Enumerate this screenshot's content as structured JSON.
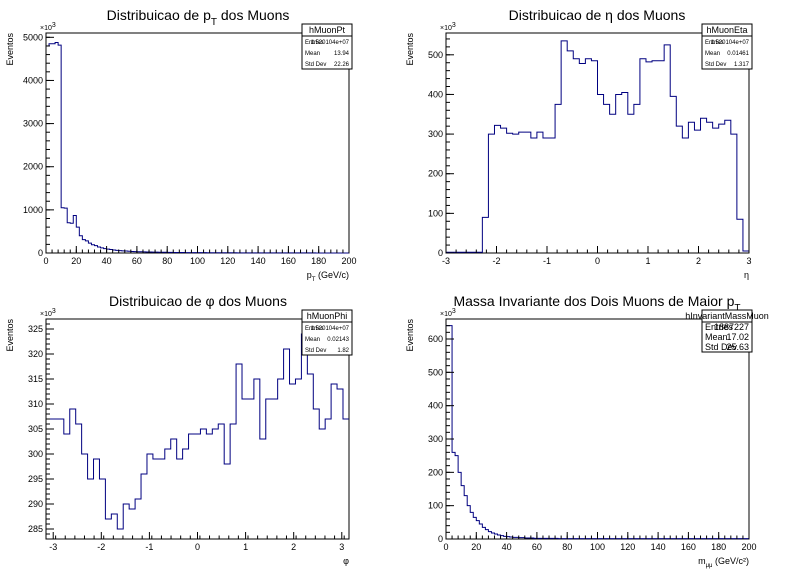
{
  "chart_data": [
    {
      "type": "histogram",
      "title": "Distribuicao de p",
      "title_sub": "T",
      "title_tail": " dos Muons",
      "xlabel": "p",
      "xlabel_sub": "T",
      "xlabel_tail": " (GeV/c)",
      "ylabel": "Eventos",
      "y_multiplier": "×10",
      "y_multiplier_exp": "3",
      "xlim": [
        0,
        200
      ],
      "ylim": [
        0,
        5100
      ],
      "xticks": [
        0,
        20,
        40,
        60,
        80,
        100,
        120,
        140,
        160,
        180,
        200
      ],
      "yticks": [
        0,
        1000,
        2000,
        3000,
        4000,
        5000
      ],
      "bin_edges_start": 0,
      "bin_width": 2,
      "values": [
        4800,
        4850,
        4850,
        4880,
        4820,
        1050,
        1040,
        700,
        690,
        870,
        600,
        400,
        310,
        280,
        230,
        190,
        170,
        140,
        120,
        100,
        90,
        80,
        70,
        60,
        55,
        50,
        45,
        40,
        36,
        33,
        30,
        28,
        26,
        24,
        22,
        20,
        19,
        18,
        17,
        16,
        15,
        14,
        13,
        12,
        12,
        11,
        10,
        10,
        9,
        9,
        8,
        8,
        8,
        7,
        7,
        7,
        6,
        6,
        6,
        5,
        5,
        5,
        5,
        4,
        4,
        4,
        4,
        4,
        3,
        3,
        3,
        3,
        3,
        3,
        3,
        2,
        2,
        2,
        2,
        2,
        2,
        2,
        2,
        2,
        2,
        2,
        2,
        2,
        2,
        1,
        1,
        1,
        1,
        1,
        1,
        1,
        1,
        1,
        1,
        1
      ],
      "stats": {
        "name": "hMuonPt",
        "rows": [
          {
            "label": "Entries",
            "value": "1.520104e+07"
          },
          {
            "label": "Mean",
            "value": "13.94"
          },
          {
            "label": "Std Dev",
            "value": "22.26"
          }
        ]
      },
      "color": "#000080"
    },
    {
      "type": "histogram",
      "title": "Distribuicao de η dos Muons",
      "xlabel": "η",
      "ylabel": "Eventos",
      "y_multiplier": "×10",
      "y_multiplier_exp": "3",
      "xlim": [
        -3,
        3
      ],
      "ylim": [
        0,
        555
      ],
      "xticks": [
        -3,
        -2,
        -1,
        0,
        1,
        2,
        3
      ],
      "yticks": [
        0,
        100,
        200,
        300,
        400,
        500
      ],
      "bin_edges_start": -3,
      "bin_width": 0.12,
      "values": [
        2,
        2,
        2,
        2,
        2,
        2,
        90,
        300,
        322,
        315,
        302,
        300,
        305,
        305,
        290,
        305,
        290,
        290,
        375,
        535,
        510,
        490,
        478,
        490,
        485,
        400,
        375,
        350,
        400,
        405,
        350,
        375,
        490,
        482,
        485,
        485,
        525,
        395,
        320,
        290,
        330,
        310,
        340,
        330,
        315,
        325,
        335,
        300,
        85,
        5,
        5,
        2,
        2,
        2,
        2,
        2
      ],
      "stats": {
        "name": "hMuonEta",
        "rows": [
          {
            "label": "Entries",
            "value": "1.520104e+07"
          },
          {
            "label": "Mean",
            "value": "0.01461"
          },
          {
            "label": "Std Dev",
            "value": "1.317"
          }
        ]
      },
      "color": "#000080"
    },
    {
      "type": "histogram",
      "title": "Distribuicao de φ dos Muons",
      "xlabel": "φ",
      "ylabel": "Eventos",
      "y_multiplier": "×10",
      "y_multiplier_exp": "3",
      "xlim": [
        -3.15,
        3.15
      ],
      "ylim": [
        283,
        327
      ],
      "xticks": [
        -3,
        -2,
        -1,
        0,
        1,
        2,
        3
      ],
      "yticks": [
        285,
        290,
        295,
        300,
        305,
        310,
        315,
        320,
        325
      ],
      "bin_edges_start": -3.15,
      "bin_width": 0.1235,
      "values": [
        307,
        307,
        307,
        304,
        309,
        306,
        300,
        295,
        299,
        295,
        287,
        288,
        285,
        290,
        289,
        291,
        296,
        300,
        299,
        299,
        301,
        303,
        299,
        301,
        304,
        304,
        305,
        304,
        305,
        306,
        298,
        306,
        318,
        311,
        311,
        315,
        303,
        311,
        311,
        315,
        321,
        314,
        315,
        324,
        316,
        309,
        305,
        307,
        314,
        313,
        307
      ],
      "stats": {
        "name": "hMuonPhi",
        "rows": [
          {
            "label": "Entries",
            "value": "1.520104e+07"
          },
          {
            "label": "Mean",
            "value": "0.02143"
          },
          {
            "label": "Std Dev",
            "value": "1.82"
          }
        ]
      },
      "color": "#000080"
    },
    {
      "type": "histogram",
      "title": "Massa Invariante dos Dois Muons de Maior p",
      "title_sub": "T",
      "title_tail": "",
      "xlabel": "m",
      "xlabel_sub": "μμ",
      "xlabel_tail": " (GeV/c²)",
      "ylabel": "Eventos",
      "y_multiplier": "×10",
      "y_multiplier_exp": "3",
      "xlim": [
        0,
        200
      ],
      "ylim": [
        0,
        660
      ],
      "xticks": [
        0,
        20,
        40,
        60,
        80,
        100,
        120,
        140,
        160,
        180,
        200
      ],
      "yticks": [
        0,
        100,
        200,
        300,
        400,
        500,
        600
      ],
      "bin_edges_start": 0,
      "bin_width": 2,
      "values": [
        640,
        640,
        260,
        250,
        200,
        160,
        130,
        100,
        80,
        65,
        55,
        45,
        35,
        28,
        22,
        18,
        15,
        12,
        10,
        8,
        7,
        6,
        5,
        5,
        4,
        4,
        3,
        3,
        3,
        2,
        2,
        2,
        2,
        2,
        2,
        2,
        2,
        1,
        1,
        1,
        1,
        1,
        1,
        1,
        1,
        1,
        1,
        1,
        1,
        1,
        1,
        1,
        1,
        1,
        1,
        1,
        1,
        1,
        1,
        1,
        1,
        1,
        1,
        1,
        1,
        1,
        1,
        1,
        1,
        1,
        1,
        1,
        1,
        1,
        1,
        1,
        1,
        1,
        1,
        1,
        1,
        1,
        1,
        1,
        1,
        1,
        1,
        1,
        1,
        1,
        1,
        1,
        1,
        1,
        1,
        1,
        1,
        1,
        1,
        1
      ],
      "stats": {
        "name": "hInvariantMassMuon",
        "large": true,
        "rows": [
          {
            "label": "Entries",
            "value": "1887227"
          },
          {
            "label": "Mean",
            "value": "17.02"
          },
          {
            "label": "Std Dev",
            "value": "25.63"
          }
        ]
      },
      "color": "#000080"
    }
  ]
}
